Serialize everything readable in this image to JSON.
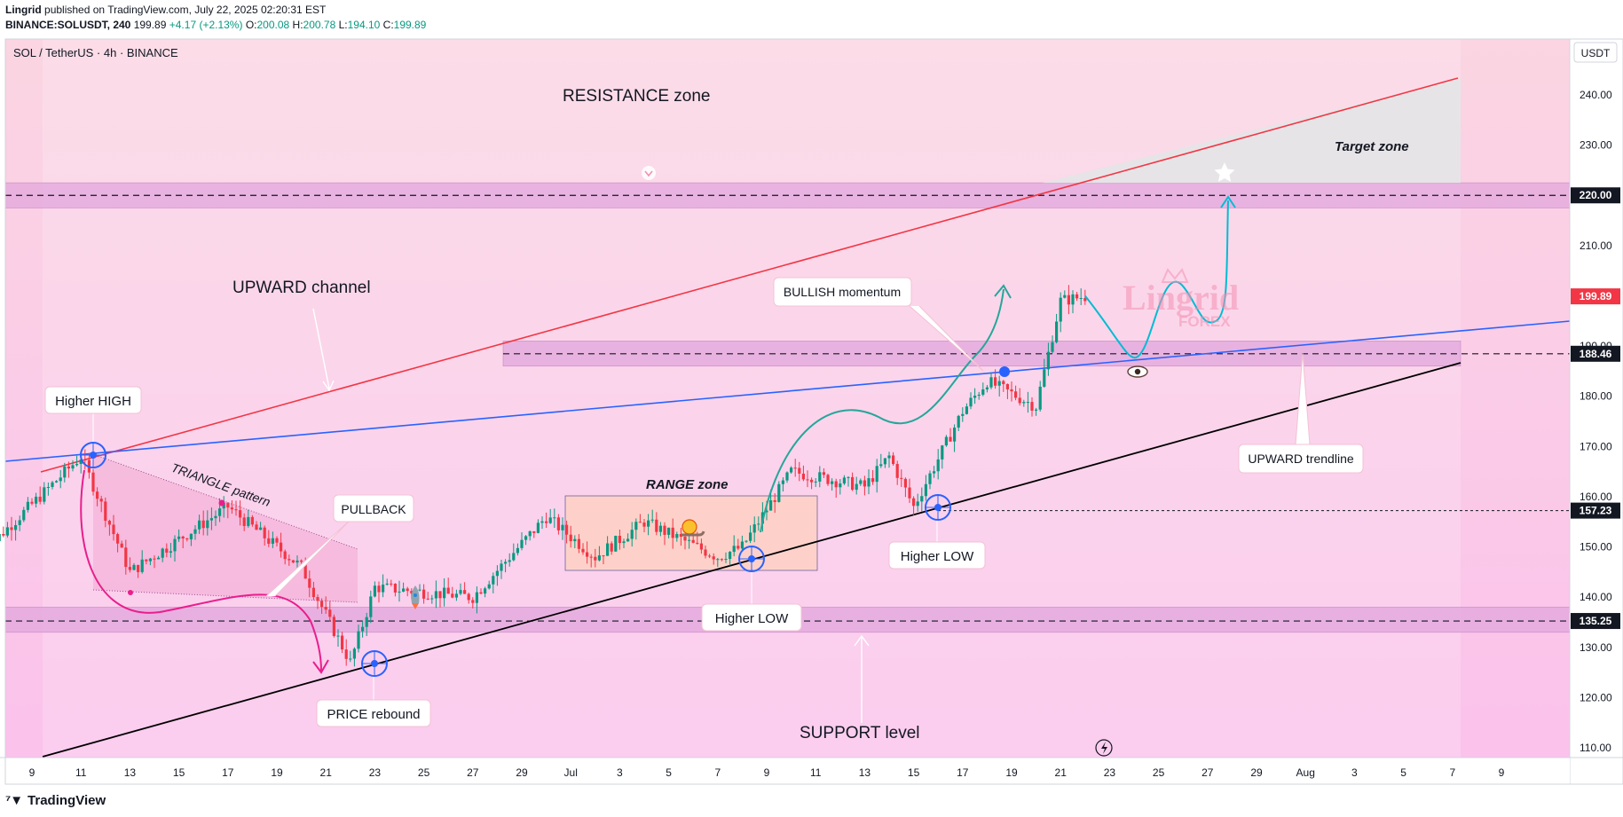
{
  "header": {
    "publisher": "Lingrid",
    "published_text": "published on TradingView.com, July 22, 2025 02:20:31 EST",
    "symbol": "BINANCE:SOLUSDT, 240",
    "last": "199.89",
    "change": "+4.17 (+2.13%)",
    "o_label": "O:",
    "o": "200.08",
    "h_label": "H:",
    "h": "200.78",
    "l_label": "L:",
    "l": "194.10",
    "c_label": "C:",
    "c": "199.89"
  },
  "chart_title": "SOL / TetherUS · 4h · BINANCE",
  "currency": "USDT",
  "footer": {
    "brand": "TradingView"
  },
  "watermark": {
    "main": "Lingrid",
    "sub": "FOREX"
  },
  "colors": {
    "up": "#089981",
    "down": "#f23645",
    "resistance_line": "#f23645",
    "channel_mid": "#2962ff",
    "support_line": "#000000",
    "zone": "#e1a6dc",
    "bg_top": "#fbd7e5",
    "bg_bottom": "#fbc6ee",
    "projection": "#00bcd4",
    "curve_green": "#26a69a",
    "curve_pink": "#e91e8c"
  },
  "annotations": {
    "resistance_zone": "RESISTANCE zone",
    "target_zone": "Target zone",
    "upward_channel": "UPWARD channel",
    "higher_high": "Higher HIGH",
    "triangle_pattern": "TRIANGLE pattern",
    "pullback": "PULLBACK",
    "range_zone": "RANGE zone",
    "bullish_momentum": "BULLISH momentum",
    "upward_trendline": "UPWARD trendline",
    "higher_low_1": "Higher LOW",
    "higher_low_2": "Higher LOW",
    "price_rebound": "PRICE rebound",
    "support_level": "SUPPORT level"
  },
  "chart_data": {
    "type": "candlestick",
    "symbol": "SOLUSDT",
    "interval": "4h",
    "ylim": [
      105,
      247
    ],
    "y_ticks": [
      110,
      120,
      130,
      140,
      150,
      160,
      170,
      180,
      190,
      200,
      210,
      220,
      230,
      240
    ],
    "x_tick_labels": [
      "9",
      "11",
      "13",
      "15",
      "17",
      "19",
      "21",
      "23",
      "25",
      "27",
      "29",
      "Jul",
      "3",
      "5",
      "7",
      "9",
      "11",
      "13",
      "15",
      "17",
      "19",
      "21",
      "23",
      "25",
      "27",
      "29",
      "Aug",
      "3",
      "5",
      "7",
      "9"
    ],
    "price_labels": [
      {
        "value": 220.0,
        "label": "220.00",
        "kind": "level"
      },
      {
        "value": 199.89,
        "label": "199.89",
        "kind": "last"
      },
      {
        "value": 188.46,
        "label": "188.46",
        "kind": "level"
      },
      {
        "value": 157.23,
        "label": "157.23",
        "kind": "level"
      },
      {
        "value": 135.25,
        "label": "135.25",
        "kind": "level"
      }
    ],
    "zones": [
      {
        "name": "resistance",
        "from": 217.5,
        "to": 222.5
      },
      {
        "name": "mid",
        "from": 186,
        "to": 191
      },
      {
        "name": "support",
        "from": 133,
        "to": 138
      }
    ],
    "path_key_points": [
      {
        "date": "Jun 7",
        "close": 149
      },
      {
        "date": "Jun 11",
        "close": 168
      },
      {
        "date": "Jun 13",
        "close": 145
      },
      {
        "date": "Jun 17",
        "close": 158
      },
      {
        "date": "Jun 20",
        "close": 146
      },
      {
        "date": "Jun 22",
        "close": 127
      },
      {
        "date": "Jun 23",
        "close": 142
      },
      {
        "date": "Jun 27",
        "close": 140
      },
      {
        "date": "Jun 30",
        "close": 156
      },
      {
        "date": "Jul 2",
        "close": 148
      },
      {
        "date": "Jul 4",
        "close": 155
      },
      {
        "date": "Jul 7",
        "close": 148
      },
      {
        "date": "Jul 8",
        "close": 150
      },
      {
        "date": "Jul 10",
        "close": 165
      },
      {
        "date": "Jul 13",
        "close": 162
      },
      {
        "date": "Jul 14",
        "close": 168
      },
      {
        "date": "Jul 15",
        "close": 158
      },
      {
        "date": "Jul 17",
        "close": 177
      },
      {
        "date": "Jul 18",
        "close": 183
      },
      {
        "date": "Jul 20",
        "close": 178
      },
      {
        "date": "Jul 21",
        "close": 199
      },
      {
        "date": "Jul 22",
        "close": 199.89
      }
    ],
    "projection_points": [
      {
        "date": "Jul 22",
        "close": 200
      },
      {
        "date": "Jul 23",
        "close": 188
      },
      {
        "date": "Jul 25",
        "close": 201
      },
      {
        "date": "Jul 26",
        "close": 195
      },
      {
        "date": "Jul 27",
        "close": 220
      }
    ]
  }
}
